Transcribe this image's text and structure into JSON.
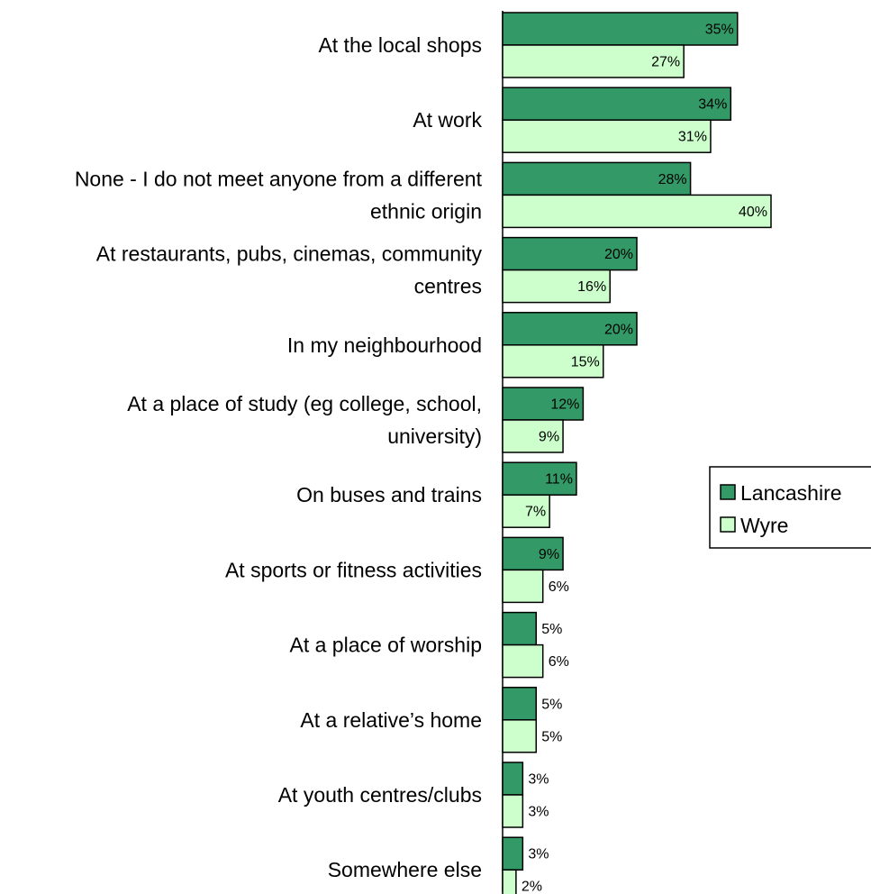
{
  "chart_data": {
    "type": "bar",
    "orientation": "horizontal",
    "categories": [
      [
        "At the local shops"
      ],
      [
        "At work"
      ],
      [
        "None - I do not meet anyone from a different",
        "ethnic origin"
      ],
      [
        "At restaurants, pubs, cinemas, community",
        "centres"
      ],
      [
        "In my neighbourhood"
      ],
      [
        "At a place of study (eg college, school,",
        "university)"
      ],
      [
        "On buses and trains"
      ],
      [
        "At sports or fitness activities"
      ],
      [
        "At a place of worship"
      ],
      [
        "At a relative’s home"
      ],
      [
        "At youth centres/clubs"
      ],
      [
        "Somewhere else"
      ]
    ],
    "series": [
      {
        "name": "Lancashire",
        "color": "#339966",
        "values": [
          35,
          34,
          28,
          20,
          20,
          12,
          11,
          9,
          5,
          5,
          3,
          3
        ],
        "labels": [
          "35%",
          "34%",
          "28%",
          "20%",
          "20%",
          "12%",
          "11%",
          "9%",
          "5%",
          "5%",
          "3%",
          "3%"
        ]
      },
      {
        "name": "Wyre",
        "color": "#ccffcc",
        "values": [
          27,
          31,
          40,
          16,
          15,
          9,
          7,
          6,
          6,
          5,
          3,
          2
        ],
        "labels": [
          "27%",
          "31%",
          "40%",
          "16%",
          "15%",
          "9%",
          "7%",
          "6%",
          "6%",
          "5%",
          "3%",
          "2%"
        ]
      }
    ],
    "title": "",
    "xlabel": "",
    "ylabel": "",
    "xlim": [
      0,
      40
    ],
    "grid": false,
    "legend_position": "right"
  }
}
